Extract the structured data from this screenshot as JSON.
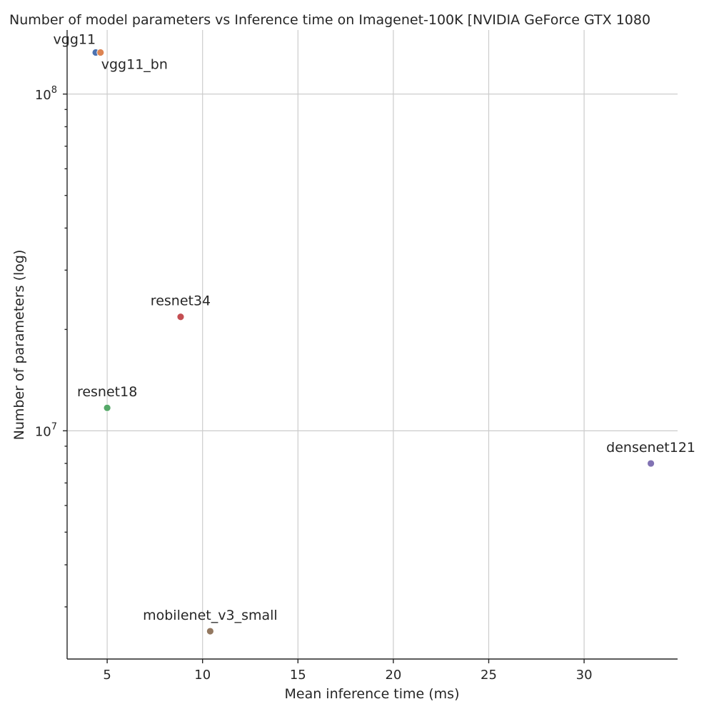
{
  "chart_data": {
    "type": "scatter",
    "title": "Number of model parameters vs Inference time on Imagenet-100K [NVIDIA GeForce GTX 1080",
    "xlabel": "Mean inference time (ms)",
    "ylabel": "Number of parameters (log)",
    "xlim": [
      2.9,
      34.9
    ],
    "ylim": [
      2100000,
      155000000
    ],
    "yscale": "log",
    "grid": true,
    "x_ticks": [
      5,
      10,
      15,
      20,
      25,
      30
    ],
    "x_tick_labels": [
      "5",
      "10",
      "15",
      "20",
      "25",
      "30"
    ],
    "y_major_ticks": [
      10000000,
      100000000
    ],
    "y_major_tick_labels": [
      {
        "base": "10",
        "exp": "7"
      },
      {
        "base": "10",
        "exp": "8"
      }
    ],
    "points": [
      {
        "name": "vgg11",
        "x": 4.4,
        "y": 132900000,
        "color": "#4c72b0",
        "label_pos": "upper-left"
      },
      {
        "name": "vgg11_bn",
        "x": 4.65,
        "y": 132900000,
        "color": "#dd8452",
        "label_pos": "lower-right"
      },
      {
        "name": "resnet34",
        "x": 8.85,
        "y": 21800000,
        "color": "#c44e52",
        "label_pos": "above"
      },
      {
        "name": "resnet18",
        "x": 5.0,
        "y": 11700000,
        "color": "#55a868",
        "label_pos": "above"
      },
      {
        "name": "densenet121",
        "x": 33.5,
        "y": 8000000,
        "color": "#8172b3",
        "label_pos": "above"
      },
      {
        "name": "mobilenet_v3_small",
        "x": 10.4,
        "y": 2540000,
        "color": "#937860",
        "label_pos": "above"
      }
    ]
  }
}
